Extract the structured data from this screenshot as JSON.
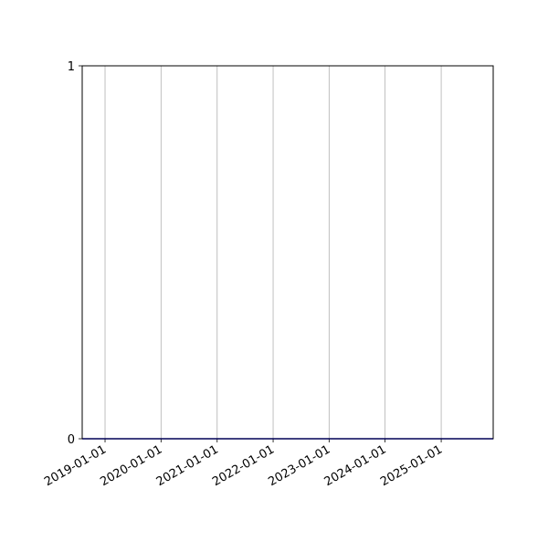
{
  "chart_data": {
    "type": "line",
    "title": "",
    "xlabel": "",
    "ylabel": "",
    "x_axis_type": "date",
    "xlim": [
      "2018-08-05",
      "2025-12-06"
    ],
    "ylim": [
      0,
      1
    ],
    "x_ticks": [
      "2019-01-01",
      "2020-01-01",
      "2021-01-01",
      "2022-01-01",
      "2023-01-01",
      "2024-01-01",
      "2025-01-01"
    ],
    "y_ticks": [
      "0",
      "1"
    ],
    "grid": "x-only",
    "series": [
      {
        "color": "#0000ff",
        "x": [
          "2018-08-05",
          "2025-12-06"
        ],
        "y": [
          0,
          0
        ]
      }
    ]
  }
}
